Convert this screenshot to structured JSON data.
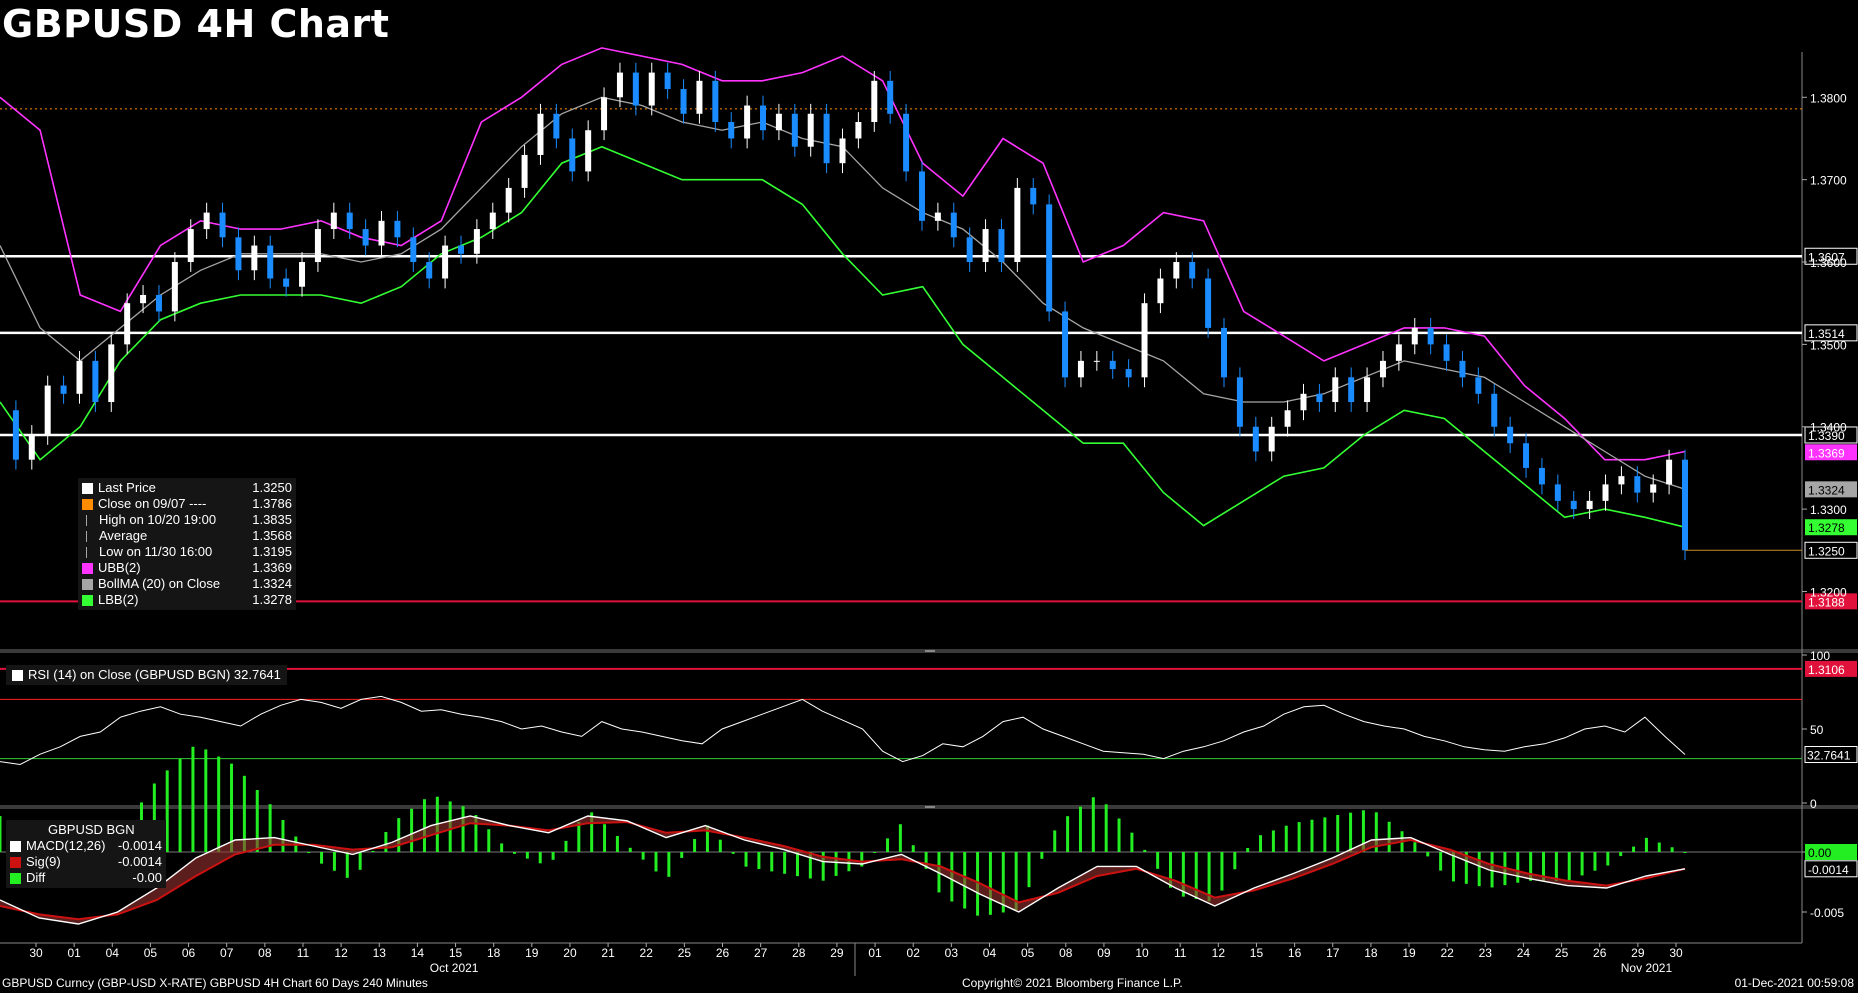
{
  "title": "GBPUSD 4H Chart",
  "footer": {
    "left": "GBPUSD Curncy (GBP-USD X-RATE) GBPUSD 4H Chart 60 Days 240 Minutes",
    "center": "Copyright© 2021 Bloomberg Finance L.P.",
    "right": "01-Dec-2021 00:59:08"
  },
  "colors": {
    "background": "#000000",
    "up_candle": "#ffffff",
    "down_candle": "#1a8cff",
    "upper_band": "#ff33ff",
    "mid_band": "#a6a6a6",
    "lower_band": "#33ff33",
    "rsi_line": "#ffffff",
    "rsi_upper": "#ff2020",
    "rsi_lower": "#33cc33",
    "macd_line": "#ffffff",
    "sig_line": "#cc1111",
    "hist": "#22ee22",
    "resistance": "#ffffff",
    "support": "#e0123c",
    "prev_close": "#ff8c00"
  },
  "main_legend": [
    {
      "label": "Last Price",
      "value": "1.3250",
      "color": "#ffffff",
      "icon": "square"
    },
    {
      "label": "Close on 09/07 ----",
      "value": "1.3786",
      "color": "#ff8c00",
      "icon": "square"
    },
    {
      "label": "High on 10/20 19:00",
      "value": "1.3835",
      "color": "#a6a6a6",
      "icon": "high-marker"
    },
    {
      "label": "Average",
      "value": "1.3568",
      "color": "#a6a6a6",
      "icon": "average-marker"
    },
    {
      "label": "Low on 11/30 16:00",
      "value": "1.3195",
      "color": "#a6a6a6",
      "icon": "low-marker"
    },
    {
      "label": "UBB(2)",
      "value": "1.3369",
      "color": "#ff33ff",
      "icon": "square"
    },
    {
      "label": "BollMA (20)  on Close",
      "value": "1.3324",
      "color": "#a6a6a6",
      "icon": "square"
    },
    {
      "label": "LBB(2)",
      "value": "1.3278",
      "color": "#33ff33",
      "icon": "square"
    }
  ],
  "rsi_legend": {
    "label": "RSI (14)  on Close (GBPUSD BGN) 32.7641",
    "color": "#ffffff"
  },
  "macd_legend": {
    "header": "GBPUSD BGN",
    "rows": [
      {
        "label": "MACD(12,26)",
        "value": "-0.0014",
        "color": "#ffffff"
      },
      {
        "label": "Sig(9)",
        "value": "-0.0014",
        "color": "#cc1111"
      },
      {
        "label": "Diff",
        "value": "-0.00",
        "color": "#22ee22"
      }
    ]
  },
  "chart_data": [
    {
      "type": "line",
      "name_shown": "GBPUSD 4H",
      "x_ticks": [
        "30",
        "01",
        "04",
        "05",
        "06",
        "07",
        "08",
        "11",
        "12",
        "13",
        "14",
        "15",
        "18",
        "19",
        "20",
        "21",
        "22",
        "25",
        "26",
        "27",
        "28",
        "29",
        "01",
        "02",
        "03",
        "04",
        "05",
        "08",
        "09",
        "10",
        "11",
        "12",
        "15",
        "16",
        "17",
        "18",
        "19",
        "22",
        "23",
        "24",
        "25",
        "26",
        "29",
        "30"
      ],
      "month_labels": [
        {
          "label": "Oct 2021",
          "at_tick": "01"
        },
        {
          "label": "Nov 2021",
          "at_tick": "15"
        }
      ],
      "y_ticks": [
        "1.3800",
        "1.3700",
        "1.3600",
        "1.3500",
        "1.3400",
        "1.3300",
        "1.3200"
      ],
      "ylim": [
        1.3135,
        1.3855
      ],
      "horizontal_lines": [
        {
          "label": "1.3607",
          "value": 1.3607,
          "kind": "resistance"
        },
        {
          "label": "1.3514",
          "value": 1.3514,
          "kind": "resistance"
        },
        {
          "label": "1.3390",
          "value": 1.339,
          "kind": "resistance"
        },
        {
          "label": "1.3188",
          "value": 1.3188,
          "kind": "support"
        },
        {
          "label": "1.3106",
          "value": 1.3106,
          "kind": "support"
        }
      ],
      "prev_close_line": 1.3786,
      "right_badges": [
        {
          "label": "1.3369",
          "color": "#ff33ff",
          "value": 1.3369
        },
        {
          "label": "1.3324",
          "color": "#a6a6a6",
          "value": 1.3324
        },
        {
          "label": "1.3278",
          "color": "#33ff33",
          "value": 1.3278
        },
        {
          "label": "1.3250",
          "color": "#000000",
          "value": 1.325
        }
      ],
      "last_price": 1.325,
      "price_path": [
        1.342,
        1.336,
        1.339,
        1.345,
        1.344,
        1.348,
        1.343,
        1.35,
        1.355,
        1.356,
        1.354,
        1.36,
        1.364,
        1.366,
        1.363,
        1.359,
        1.362,
        1.358,
        1.357,
        1.36,
        1.364,
        1.366,
        1.364,
        1.362,
        1.365,
        1.363,
        1.36,
        1.358,
        1.362,
        1.361,
        1.364,
        1.366,
        1.369,
        1.373,
        1.378,
        1.375,
        1.371,
        1.376,
        1.38,
        1.383,
        1.379,
        1.383,
        1.381,
        1.378,
        1.382,
        1.377,
        1.375,
        1.379,
        1.376,
        1.378,
        1.374,
        1.378,
        1.372,
        1.375,
        1.377,
        1.382,
        1.378,
        1.371,
        1.365,
        1.366,
        1.363,
        1.36,
        1.364,
        1.36,
        1.369,
        1.367,
        1.354,
        1.346,
        1.348,
        1.348,
        1.347,
        1.346,
        1.355,
        1.358,
        1.36,
        1.358,
        1.352,
        1.346,
        1.34,
        1.337,
        1.34,
        1.342,
        1.344,
        1.343,
        1.346,
        1.343,
        1.346,
        1.348,
        1.35,
        1.352,
        1.35,
        1.348,
        1.346,
        1.344,
        1.34,
        1.338,
        1.335,
        1.333,
        1.331,
        1.33,
        1.331,
        1.333,
        1.334,
        1.332,
        1.333,
        1.336,
        1.325
      ],
      "upper_band": [
        1.38,
        1.376,
        1.356,
        1.354,
        1.362,
        1.365,
        1.364,
        1.364,
        1.365,
        1.363,
        1.362,
        1.365,
        1.377,
        1.38,
        1.384,
        1.386,
        1.385,
        1.384,
        1.382,
        1.382,
        1.383,
        1.385,
        1.382,
        1.372,
        1.368,
        1.375,
        1.372,
        1.36,
        1.362,
        1.366,
        1.365,
        1.354,
        1.351,
        1.348,
        1.35,
        1.352,
        1.352,
        1.351,
        1.345,
        1.341,
        1.336,
        1.336,
        1.337
      ],
      "mid_band": [
        1.362,
        1.352,
        1.348,
        1.352,
        1.356,
        1.359,
        1.361,
        1.361,
        1.361,
        1.36,
        1.361,
        1.364,
        1.369,
        1.374,
        1.378,
        1.38,
        1.379,
        1.377,
        1.376,
        1.377,
        1.375,
        1.374,
        1.369,
        1.366,
        1.364,
        1.36,
        1.355,
        1.352,
        1.35,
        1.348,
        1.344,
        1.343,
        1.343,
        1.344,
        1.346,
        1.348,
        1.347,
        1.346,
        1.343,
        1.34,
        1.337,
        1.334,
        1.3324
      ],
      "lower_band": [
        1.343,
        1.336,
        1.34,
        1.348,
        1.353,
        1.355,
        1.356,
        1.356,
        1.356,
        1.355,
        1.357,
        1.361,
        1.363,
        1.366,
        1.372,
        1.374,
        1.372,
        1.37,
        1.37,
        1.37,
        1.367,
        1.361,
        1.356,
        1.357,
        1.35,
        1.346,
        1.342,
        1.338,
        1.338,
        1.332,
        1.328,
        1.331,
        1.334,
        1.335,
        1.339,
        1.342,
        1.341,
        1.337,
        1.333,
        1.329,
        1.33,
        1.329,
        1.3278
      ]
    },
    {
      "type": "line",
      "title": "RSI (14)  on Close (GBPUSD BGN)",
      "y_ticks": [
        "100",
        "50",
        "0"
      ],
      "ylim": [
        0,
        100
      ],
      "upper_level": 70,
      "lower_level": 30,
      "last_value": 32.7641,
      "last_label": "32.7641",
      "values": [
        28,
        26,
        33,
        38,
        45,
        48,
        58,
        62,
        65,
        60,
        58,
        55,
        52,
        60,
        66,
        70,
        68,
        64,
        70,
        72,
        68,
        62,
        63,
        60,
        58,
        55,
        50,
        52,
        48,
        45,
        55,
        50,
        48,
        45,
        42,
        40,
        50,
        55,
        60,
        65,
        70,
        62,
        56,
        50,
        35,
        28,
        32,
        40,
        38,
        45,
        55,
        58,
        50,
        45,
        40,
        35,
        34,
        33,
        30,
        35,
        38,
        42,
        48,
        52,
        60,
        65,
        66,
        60,
        55,
        52,
        50,
        45,
        42,
        38,
        36,
        35,
        38,
        40,
        44,
        50,
        52,
        48,
        58,
        45,
        32.76
      ]
    },
    {
      "type": "area",
      "title": "GBPUSD BGN",
      "y_ticks": [
        "0.00",
        "-0.005"
      ],
      "y_tick_values": [
        0.0,
        -0.005
      ],
      "ylim": [
        -0.0075,
        0.0035
      ],
      "badges": [
        {
          "label": "0.00",
          "value": 0.0,
          "color": "#22ee22"
        },
        {
          "label": "-0.0014",
          "value": -0.0014,
          "color": "#000000"
        }
      ],
      "macd": [
        -0.004,
        -0.0055,
        -0.006,
        -0.005,
        -0.003,
        -0.0005,
        0.001,
        0.0012,
        0.0005,
        -0.0002,
        0.0008,
        0.0022,
        0.003,
        0.0022,
        0.0016,
        0.003,
        0.0026,
        0.0012,
        0.0022,
        0.001,
        0.0002,
        -0.0008,
        -0.001,
        -0.0002,
        -0.0018,
        -0.0035,
        -0.005,
        -0.003,
        -0.0012,
        -0.0012,
        -0.003,
        -0.0045,
        -0.003,
        -0.0018,
        -0.0005,
        0.001,
        0.0012,
        -0.0002,
        -0.0015,
        -0.0022,
        -0.0028,
        -0.003,
        -0.002,
        -0.0014
      ],
      "sig": [
        -0.0045,
        -0.0052,
        -0.0056,
        -0.0052,
        -0.004,
        -0.002,
        -0.0002,
        0.0006,
        0.0006,
        0.0002,
        0.0004,
        0.0014,
        0.0024,
        0.0022,
        0.0018,
        0.0024,
        0.0025,
        0.0016,
        0.0018,
        0.0012,
        0.0005,
        -0.0004,
        -0.0008,
        -0.0006,
        -0.0012,
        -0.0026,
        -0.0042,
        -0.0034,
        -0.002,
        -0.0014,
        -0.0024,
        -0.0038,
        -0.0032,
        -0.0022,
        -0.001,
        0.0004,
        0.001,
        0.0002,
        -0.001,
        -0.0018,
        -0.0024,
        -0.0028,
        -0.0022,
        -0.0014
      ]
    }
  ]
}
